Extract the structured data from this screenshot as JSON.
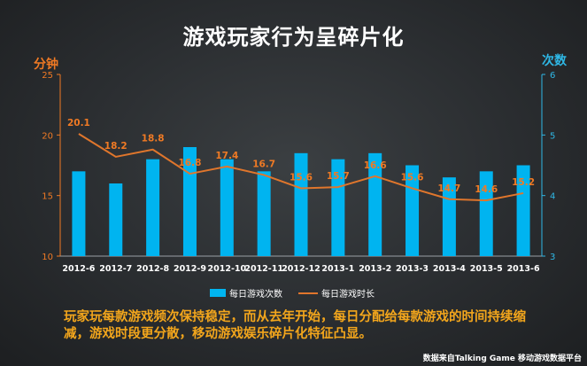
{
  "title": "游戏玩家行为呈碎片化",
  "axis_left_title": "分钟",
  "axis_right_title": "次数",
  "summary": "玩家玩每款游戏频次保持稳定，而从去年开始，每日分配给每款游戏的时间持续缩减，游戏时段更分散，移动游戏娱乐碎片化特征凸显。",
  "source": "数据来自Talking Game 移动游戏数据平台",
  "colors": {
    "bar": "#00b4f0",
    "line": "#e0762c",
    "left_axis": "#f07a24",
    "right_axis": "#2fb8e6",
    "label": "#f07a24"
  },
  "chart_data": {
    "type": "bar",
    "categories": [
      "2012-6",
      "2012-7",
      "2012-8",
      "2012-9",
      "2012-10",
      "2012-11",
      "2012-12",
      "2013-1",
      "2013-2",
      "2013-3",
      "2013-4",
      "2013-5",
      "2013-6"
    ],
    "series": [
      {
        "name": "每日游戏次数",
        "type": "bar",
        "axis": "right",
        "values": [
          4.4,
          4.2,
          4.6,
          4.8,
          4.6,
          4.4,
          4.7,
          4.6,
          4.7,
          4.5,
          4.3,
          4.4,
          4.5
        ]
      },
      {
        "name": "每日游戏时长",
        "type": "line",
        "axis": "left",
        "values": [
          20.1,
          18.2,
          18.8,
          16.8,
          17.4,
          16.7,
          15.6,
          15.7,
          16.6,
          15.6,
          14.7,
          14.6,
          15.2
        ]
      }
    ],
    "left_axis": {
      "ylim": [
        10,
        25
      ],
      "ticks": [
        10,
        15,
        20,
        25
      ]
    },
    "right_axis": {
      "ylim": [
        3,
        6
      ],
      "ticks": [
        3,
        4,
        5,
        6
      ]
    },
    "line_labels": [
      "20.1",
      "18.2",
      "18.8",
      "16.8",
      "17.4",
      "16.7",
      "15.6",
      "15.7",
      "16.6",
      "15.6",
      "14.7",
      "14.6",
      "15.2"
    ],
    "grid": false,
    "legend": "bottom"
  }
}
